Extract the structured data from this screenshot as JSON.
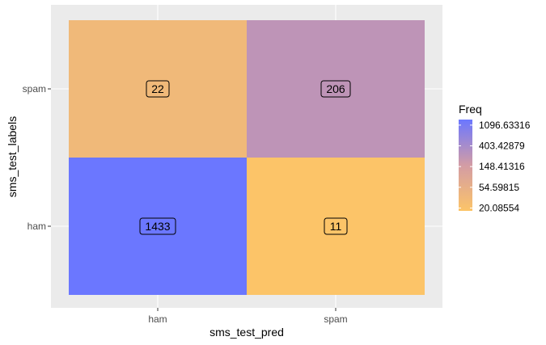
{
  "chart_data": {
    "type": "heatmap",
    "xlabel": "sms_test_pred",
    "ylabel": "sms_test_labels",
    "x_categories": [
      "ham",
      "spam"
    ],
    "y_categories": [
      "ham",
      "spam"
    ],
    "cells": [
      {
        "x": "ham",
        "y": "spam",
        "value": 22,
        "label": "22"
      },
      {
        "x": "spam",
        "y": "spam",
        "value": 206,
        "label": "206"
      },
      {
        "x": "ham",
        "y": "ham",
        "value": 1433,
        "label": "1433"
      },
      {
        "x": "spam",
        "y": "ham",
        "value": 11,
        "label": "11"
      }
    ],
    "legend": {
      "title": "Freq",
      "scale": "log",
      "breaks": [
        1096.63316,
        403.42879,
        148.41316,
        54.59815,
        20.08554
      ],
      "labels": [
        "1096.63316",
        "403.42879",
        "148.41316",
        "54.59815",
        "20.08554"
      ],
      "color_low": "#FCC468",
      "color_high": "#6B77FF",
      "placement": "right"
    },
    "panel_background": "#EBEBEB",
    "grid": true
  }
}
